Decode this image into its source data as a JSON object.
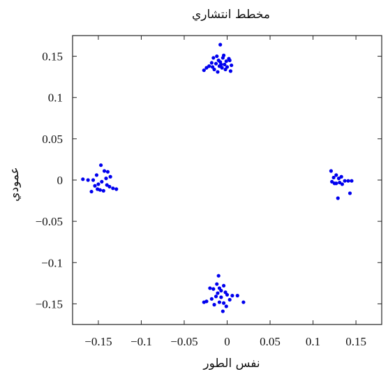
{
  "chart_data": {
    "type": "scatter",
    "title": "مخطط انتشاري",
    "xlabel": "نفس الطور",
    "ylabel": "عمودي",
    "xlim": [
      -0.18,
      0.18
    ],
    "ylim": [
      -0.175,
      0.175
    ],
    "xticks": [
      -0.15,
      -0.1,
      -0.05,
      0,
      0.05,
      0.1,
      0.15
    ],
    "xtick_labels": [
      "−0.15",
      "−0.1",
      "−0.05",
      "0",
      "0.05",
      "0.1",
      "0.15"
    ],
    "yticks": [
      0.15,
      0.1,
      0.05,
      0,
      -0.05,
      -0.1,
      -0.15
    ],
    "ytick_labels": [
      "0.15",
      "0.1",
      "0.05",
      "0",
      "−0.05",
      "−0.1",
      "−0.15"
    ],
    "grid": false,
    "marker_color": "#0000ee",
    "series": [
      {
        "x": [
          -0.008,
          -0.012,
          -0.004,
          -0.01,
          -0.016,
          -0.007,
          -0.001,
          0.003,
          0.005,
          -0.009,
          -0.013,
          -0.018,
          -0.021,
          -0.024,
          -0.027,
          -0.006,
          -0.002,
          0.0,
          0.004,
          -0.011,
          -0.015,
          -0.003,
          -0.008,
          0.002,
          -0.017,
          -0.005
        ],
        "y": [
          0.164,
          0.15,
          0.151,
          0.145,
          0.148,
          0.14,
          0.144,
          0.145,
          0.139,
          0.138,
          0.141,
          0.142,
          0.138,
          0.136,
          0.133,
          0.136,
          0.134,
          0.137,
          0.132,
          0.131,
          0.134,
          0.14,
          0.143,
          0.147,
          0.137,
          0.148
        ],
        "clusters_note": ""
      },
      {
        "x": [
          -0.147,
          -0.152,
          -0.156,
          -0.162,
          -0.168,
          -0.143,
          -0.139,
          -0.141,
          -0.146,
          -0.15,
          -0.154,
          -0.137,
          -0.133,
          -0.129,
          -0.148,
          -0.144,
          -0.158,
          -0.151,
          -0.14,
          -0.136
        ],
        "y": [
          0.018,
          0.006,
          0.0,
          0.0,
          0.001,
          0.011,
          0.01,
          0.002,
          -0.002,
          -0.005,
          -0.007,
          -0.008,
          -0.01,
          -0.011,
          -0.012,
          -0.013,
          -0.014,
          -0.011,
          -0.006,
          0.004
        ],
        "clusters_note": ""
      },
      {
        "x": [
          0.121,
          0.124,
          0.127,
          0.13,
          0.133,
          0.127,
          0.125,
          0.131,
          0.137,
          0.141,
          0.145,
          0.143,
          0.129,
          0.134,
          0.122
        ],
        "y": [
          0.011,
          0.003,
          0.006,
          0.002,
          0.004,
          -0.004,
          -0.004,
          -0.003,
          -0.001,
          -0.001,
          -0.001,
          -0.016,
          -0.022,
          -0.005,
          -0.002
        ],
        "clusters_note": ""
      },
      {
        "x": [
          -0.01,
          -0.012,
          -0.004,
          -0.009,
          -0.016,
          -0.02,
          -0.024,
          -0.027,
          -0.007,
          -0.002,
          0.0,
          0.006,
          0.012,
          0.019,
          -0.013,
          -0.018,
          -0.009,
          -0.004,
          -0.001,
          -0.005,
          -0.015,
          -0.011,
          0.003,
          -0.007
        ],
        "y": [
          -0.116,
          -0.126,
          -0.128,
          -0.131,
          -0.132,
          -0.131,
          -0.147,
          -0.148,
          -0.134,
          -0.136,
          -0.139,
          -0.14,
          -0.14,
          -0.148,
          -0.141,
          -0.144,
          -0.148,
          -0.149,
          -0.153,
          -0.159,
          -0.151,
          -0.137,
          -0.145,
          -0.142
        ],
        "clusters_note": ""
      }
    ]
  }
}
